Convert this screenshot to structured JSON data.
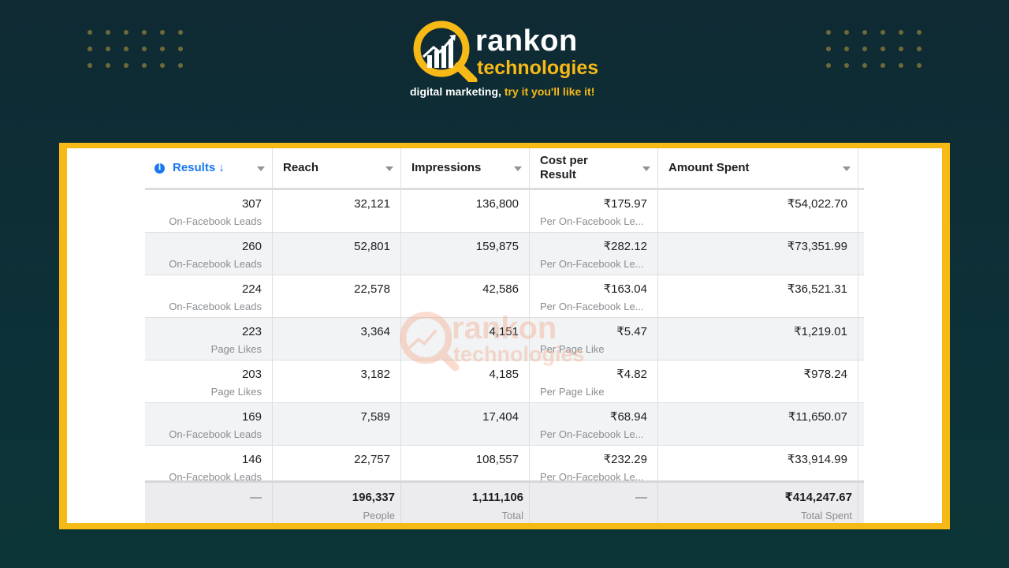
{
  "brand": {
    "name_line1": "rankon",
    "name_line2": "technologies",
    "tagline_prefix": "digital marketing, ",
    "tagline_accent": "try it you'll like it!",
    "accent_color": "#f7b916",
    "logo_icon": "chart-magnifier-icon"
  },
  "table": {
    "headers": [
      {
        "label": "Results",
        "sort_icon": "arrow-down-icon",
        "info_icon": "info-icon"
      },
      {
        "label": "Reach"
      },
      {
        "label": "Impressions"
      },
      {
        "label": "Cost per Result"
      },
      {
        "label": "Amount Spent"
      }
    ],
    "rows": [
      {
        "results": "307",
        "results_type": "On-Facebook Leads",
        "reach": "32,121",
        "impressions": "136,800",
        "cost": "₹175.97",
        "cost_type": "Per On-Facebook Le...",
        "spent": "₹54,022.70"
      },
      {
        "results": "260",
        "results_type": "On-Facebook Leads",
        "reach": "52,801",
        "impressions": "159,875",
        "cost": "₹282.12",
        "cost_type": "Per On-Facebook Le...",
        "spent": "₹73,351.99"
      },
      {
        "results": "224",
        "results_type": "On-Facebook Leads",
        "reach": "22,578",
        "impressions": "42,586",
        "cost": "₹163.04",
        "cost_type": "Per On-Facebook Le...",
        "spent": "₹36,521.31"
      },
      {
        "results": "223",
        "results_type": "Page Likes",
        "reach": "3,364",
        "impressions": "4,151",
        "cost": "₹5.47",
        "cost_type": "Per Page Like",
        "spent": "₹1,219.01"
      },
      {
        "results": "203",
        "results_type": "Page Likes",
        "reach": "3,182",
        "impressions": "4,185",
        "cost": "₹4.82",
        "cost_type": "Per Page Like",
        "spent": "₹978.24"
      },
      {
        "results": "169",
        "results_type": "On-Facebook Leads",
        "reach": "7,589",
        "impressions": "17,404",
        "cost": "₹68.94",
        "cost_type": "Per On-Facebook Le...",
        "spent": "₹11,650.07"
      },
      {
        "results": "146",
        "results_type": "On-Facebook Leads",
        "reach": "22,757",
        "impressions": "108,557",
        "cost": "₹232.29",
        "cost_type": "Per On-Facebook Le...",
        "spent": "₹33,914.99"
      }
    ],
    "totals": {
      "results": "—",
      "reach": "196,337",
      "reach_label": "People",
      "impressions": "1,111,106",
      "impressions_label": "Total",
      "cost": "—",
      "spent": "₹414,247.67",
      "spent_label": "Total Spent"
    }
  },
  "watermark": {
    "line1": "rankon",
    "line2": "technologies"
  }
}
